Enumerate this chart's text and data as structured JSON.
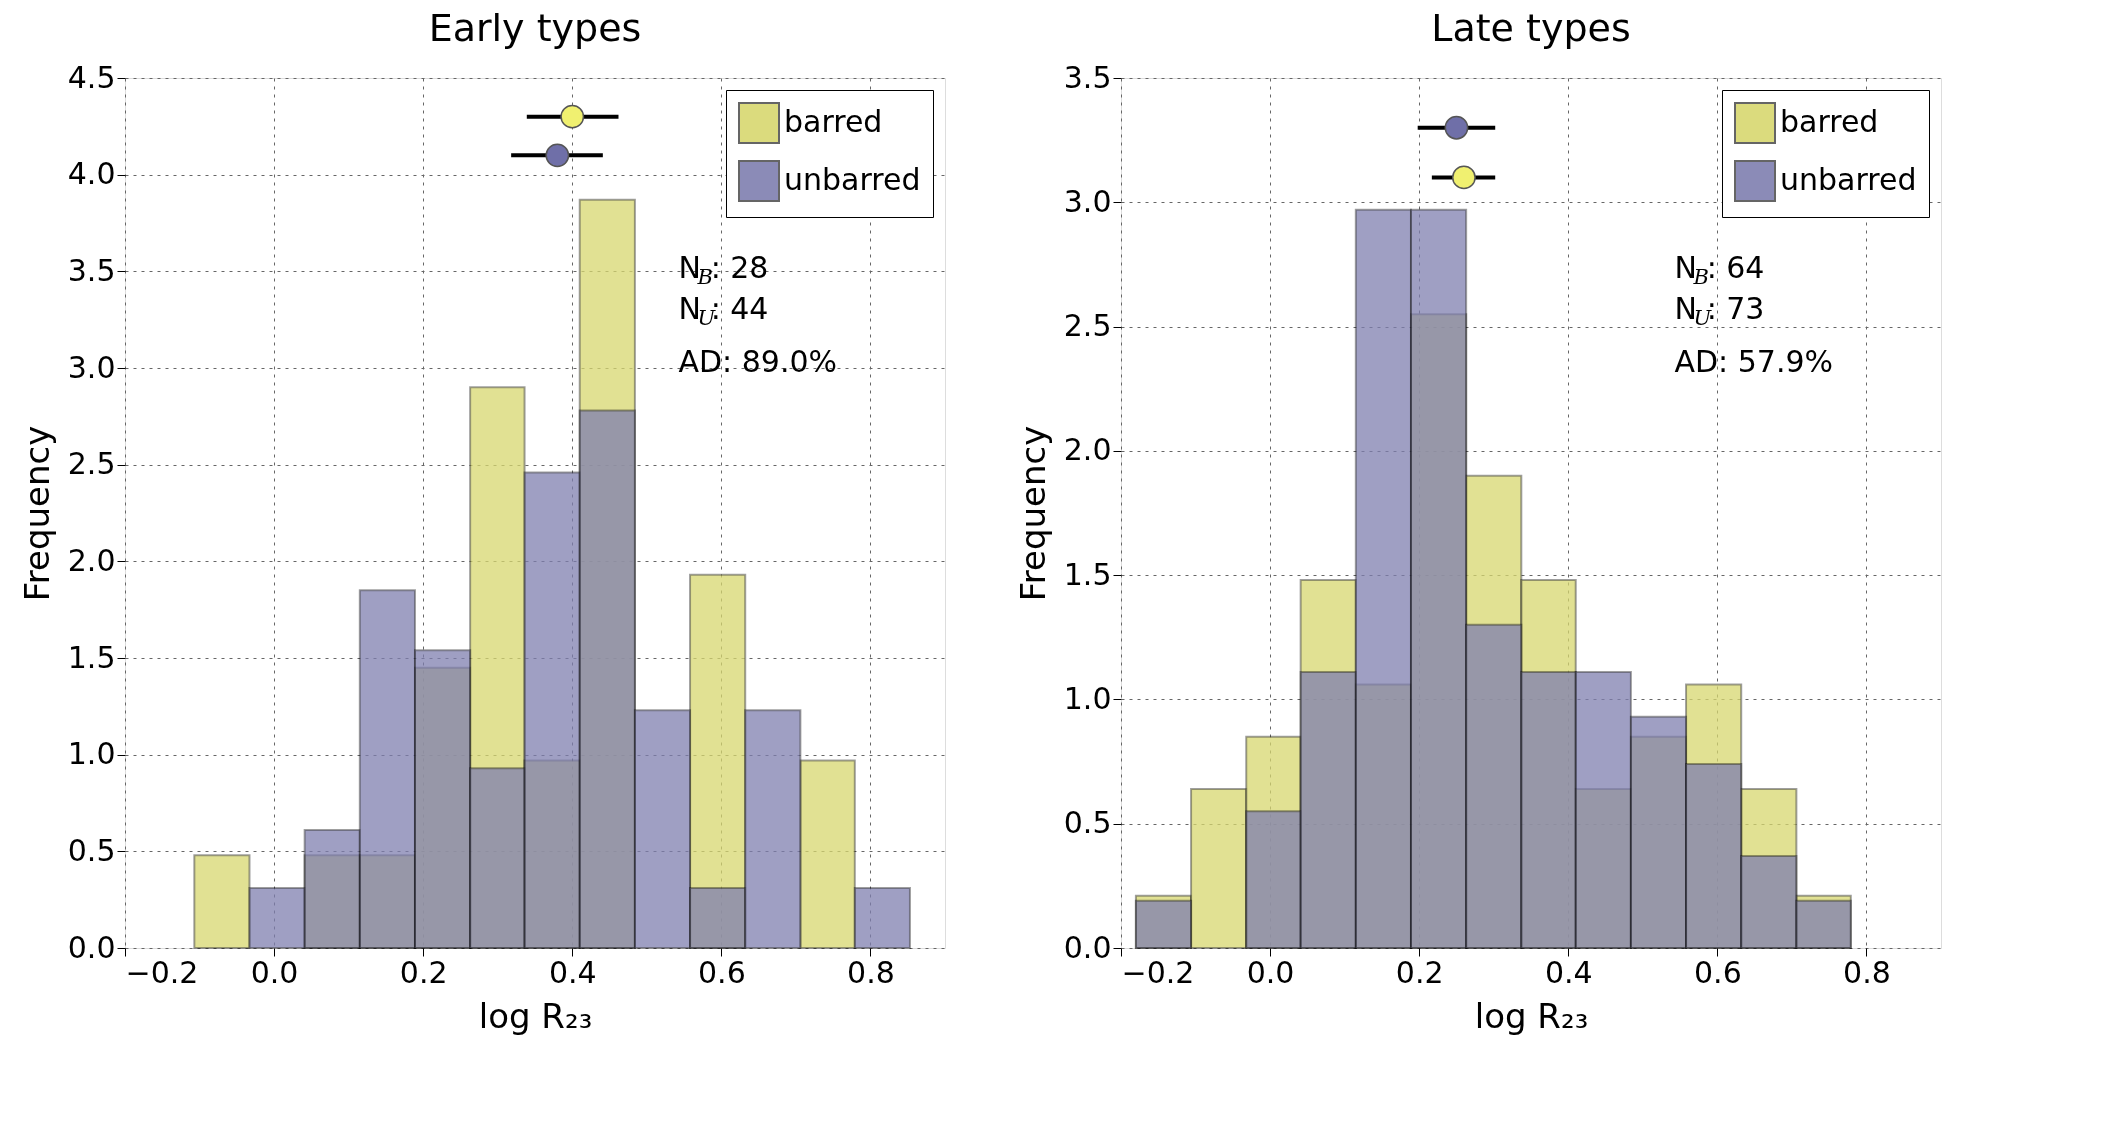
{
  "chart_data": [
    {
      "type": "histogram",
      "title": "Early types",
      "xlabel": "log R₂₃",
      "ylabel": "Frequency",
      "xlim": [
        -0.2,
        0.9
      ],
      "ylim": [
        0,
        4.5
      ],
      "xticks": [
        {
          "value": -0.2,
          "label": "−0.2"
        },
        {
          "value": 0,
          "label": "0.0"
        },
        {
          "value": 0.2,
          "label": "0.2"
        },
        {
          "value": 0.4,
          "label": "0.4"
        },
        {
          "value": 0.6,
          "label": "0.6"
        },
        {
          "value": 0.8,
          "label": "0.8"
        }
      ],
      "yticks": [
        {
          "value": 0,
          "label": "0.0"
        },
        {
          "value": 0.5,
          "label": "0.5"
        },
        {
          "value": 1,
          "label": "1.0"
        },
        {
          "value": 1.5,
          "label": "1.5"
        },
        {
          "value": 2,
          "label": "2.0"
        },
        {
          "value": 2.5,
          "label": "2.5"
        },
        {
          "value": 3,
          "label": "3.0"
        },
        {
          "value": 3.5,
          "label": "3.5"
        },
        {
          "value": 4,
          "label": "4.0"
        },
        {
          "value": 4.5,
          "label": "4.5"
        }
      ],
      "grid": true,
      "legend": "top right",
      "series": [
        {
          "name": "barred",
          "color": "#d8d870",
          "bins": [
            -0.107,
            -0.033,
            0.041,
            0.115,
            0.189,
            0.263,
            0.336,
            0.41,
            0.484,
            0.558,
            0.632,
            0.706,
            0.779
          ],
          "values": [
            0.48,
            0,
            0.48,
            0.48,
            1.45,
            2.9,
            0.97,
            3.87,
            0,
            1.93,
            0,
            0.97
          ]
        },
        {
          "name": "unbarred",
          "color": "#7f7fb0",
          "bins": [
            -0.033,
            0.041,
            0.115,
            0.189,
            0.263,
            0.336,
            0.41,
            0.484,
            0.558,
            0.632,
            0.706,
            0.779,
            0.853
          ],
          "values": [
            0.31,
            0.61,
            1.85,
            1.54,
            0.93,
            2.46,
            2.78,
            1.23,
            0.31,
            1.23,
            0,
            0.31
          ]
        },
        {
          "type": "scatter",
          "marker": "circle",
          "color": "#f0f070",
          "x": [
            0.4
          ],
          "values": [
            4.3
          ],
          "xerrors": [
            [
              0.339,
              0.462
            ]
          ]
        },
        {
          "type": "scatter",
          "marker": "circle",
          "color": "#6f6fa8",
          "x": [
            0.38
          ],
          "values": [
            4.1
          ],
          "xerrors": [
            [
              0.318,
              0.441
            ]
          ]
        }
      ],
      "annotations": [
        "N$_{B}$: 28",
        "N$_{U}$: 44",
        "AD: 89.0%"
      ]
    },
    {
      "type": "histogram",
      "title": "Late types",
      "xlabel": "log R₂₃",
      "ylabel": "Frequency",
      "xlim": [
        -0.2,
        0.9
      ],
      "ylim": [
        0,
        3.5
      ],
      "xticks": [
        {
          "value": -0.2,
          "label": "−0.2"
        },
        {
          "value": 0,
          "label": "0.0"
        },
        {
          "value": 0.2,
          "label": "0.2"
        },
        {
          "value": 0.4,
          "label": "0.4"
        },
        {
          "value": 0.6,
          "label": "0.6"
        },
        {
          "value": 0.8,
          "label": "0.8"
        }
      ],
      "yticks": [
        {
          "value": 0,
          "label": "0.0"
        },
        {
          "value": 0.5,
          "label": "0.5"
        },
        {
          "value": 1,
          "label": "1.0"
        },
        {
          "value": 1.5,
          "label": "1.5"
        },
        {
          "value": 2,
          "label": "2.0"
        },
        {
          "value": 2.5,
          "label": "2.5"
        },
        {
          "value": 3,
          "label": "3.0"
        },
        {
          "value": 3.5,
          "label": "3.5"
        }
      ],
      "grid": true,
      "legend": "top right",
      "series": [
        {
          "name": "barred",
          "color": "#d8d870",
          "bins": [
            -0.18,
            -0.106,
            -0.032,
            0.041,
            0.115,
            0.189,
            0.263,
            0.337,
            0.41,
            0.484,
            0.558,
            0.632,
            0.706,
            0.779
          ],
          "values": [
            0.21,
            0.64,
            0.85,
            1.48,
            1.06,
            2.55,
            1.9,
            1.48,
            0.64,
            0.85,
            1.06,
            0.64,
            0.21
          ]
        },
        {
          "name": "unbarred",
          "color": "#7f7fb0",
          "bins": [
            -0.18,
            -0.106,
            -0.032,
            0.041,
            0.115,
            0.189,
            0.263,
            0.337,
            0.41,
            0.484,
            0.558,
            0.632,
            0.706,
            0.779
          ],
          "values": [
            0.19,
            0,
            0.55,
            1.11,
            2.97,
            2.97,
            1.3,
            1.11,
            1.11,
            0.93,
            0.74,
            0.37,
            0.19
          ]
        },
        {
          "type": "scatter",
          "marker": "circle",
          "color": "#6f6fa8",
          "x": [
            0.25
          ],
          "values": [
            3.3
          ],
          "xerrors": [
            [
              0.198,
              0.302
            ]
          ]
        },
        {
          "type": "scatter",
          "marker": "circle",
          "color": "#f0f070",
          "x": [
            0.26
          ],
          "values": [
            3.1
          ],
          "xerrors": [
            [
              0.217,
              0.302
            ]
          ]
        }
      ],
      "annotations": [
        "N$_{B}$: 64",
        "N$_{U}$: 73",
        "AD: 57.9%"
      ]
    }
  ]
}
